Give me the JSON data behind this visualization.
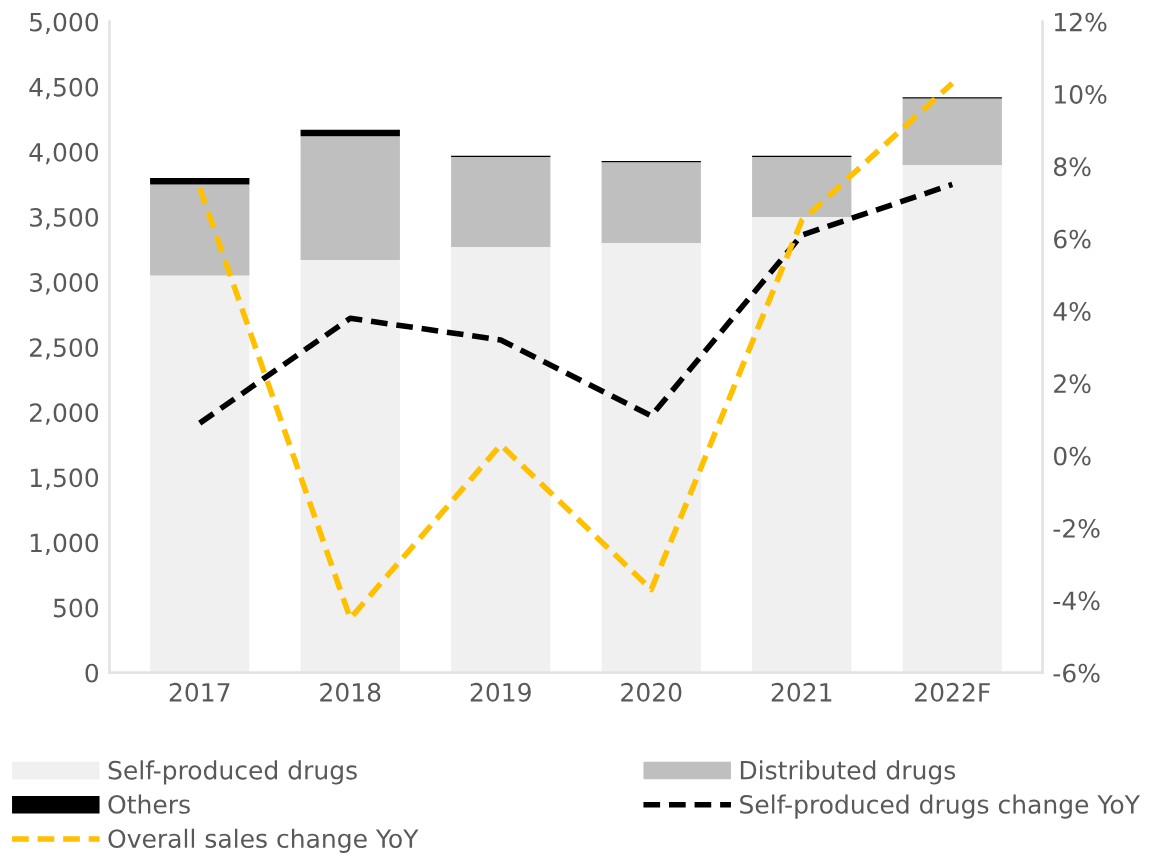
{
  "chart_data": {
    "type": "bar",
    "stacked": true,
    "categories": [
      "2017",
      "2018",
      "2019",
      "2020",
      "2021",
      "2022F"
    ],
    "series": [
      {
        "name": "Self-produced drugs",
        "color": "#f0f0f0",
        "values": [
          3050,
          3170,
          3270,
          3300,
          3500,
          3900
        ]
      },
      {
        "name": "Distributed drugs",
        "color": "#bfbfbf",
        "values": [
          700,
          950,
          690,
          620,
          460,
          510
        ]
      },
      {
        "name": "Others",
        "color": "#000000",
        "values": [
          50,
          50,
          10,
          10,
          10,
          10
        ]
      },
      {
        "name": "Self-produced drugs change YoY",
        "type": "line",
        "axis": "y2",
        "color": "#000000",
        "line_style": "dashed",
        "values": [
          0.9,
          3.8,
          3.2,
          1.1,
          6.1,
          7.5
        ]
      },
      {
        "name": "Overall sales change YoY",
        "type": "line",
        "axis": "y2",
        "color": "#ffc000",
        "line_style": "dashed",
        "values": [
          7.4,
          -4.5,
          0.3,
          -3.7,
          6.5,
          10.3
        ]
      }
    ],
    "ylim": [
      0,
      5000
    ],
    "yticks": [
      {
        "value": 0,
        "label": "0"
      },
      {
        "value": 500,
        "label": "500"
      },
      {
        "value": 1000,
        "label": "1,000"
      },
      {
        "value": 1500,
        "label": "1,500"
      },
      {
        "value": 2000,
        "label": "2,000"
      },
      {
        "value": 2500,
        "label": "2,500"
      },
      {
        "value": 3000,
        "label": "3,000"
      },
      {
        "value": 3500,
        "label": "3,500"
      },
      {
        "value": 4000,
        "label": "4,000"
      },
      {
        "value": 4500,
        "label": "4,500"
      },
      {
        "value": 5000,
        "label": "5,000"
      }
    ],
    "y2lim": [
      -6,
      12
    ],
    "y2ticks": [
      {
        "value": -6,
        "label": "-6%"
      },
      {
        "value": -4,
        "label": "-4%"
      },
      {
        "value": -2,
        "label": "-2%"
      },
      {
        "value": 0,
        "label": "0%"
      },
      {
        "value": 2,
        "label": "2%"
      },
      {
        "value": 4,
        "label": "4%"
      },
      {
        "value": 6,
        "label": "6%"
      },
      {
        "value": 8,
        "label": "8%"
      },
      {
        "value": 10,
        "label": "10%"
      },
      {
        "value": 12,
        "label": "12%"
      }
    ],
    "grid": false,
    "legend": "bottom",
    "marker": "none"
  }
}
